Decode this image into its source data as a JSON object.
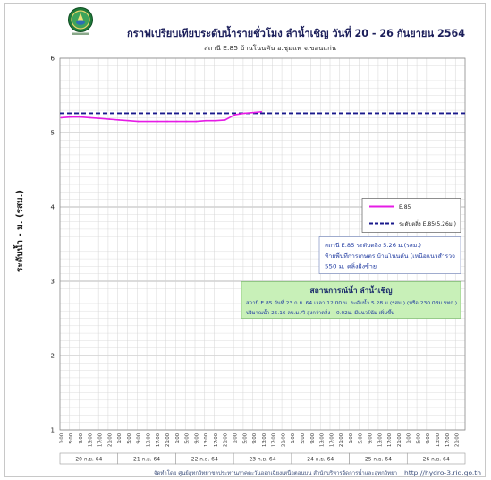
{
  "header": {
    "logo_icon": "rid-logo-icon"
  },
  "chart_data": {
    "type": "line",
    "title": "กราฟเปรียบเทียบระดับน้ำรายชั่วโมง  ลำน้ำเชิญ  วันที่ 20 - 26 กันยายน 2564",
    "subtitle": "สถานี E.85 บ้านโนนคัน อ.ชุมแพ จ.ขอนแก่น",
    "ylabel": "ระดับน้ำ  -  ม. (รสม.)",
    "ylim": [
      1,
      6
    ],
    "yticks": [
      1,
      2,
      3,
      4,
      5,
      6
    ],
    "days": [
      "20 ก.ย. 64",
      "21 ก.ย. 64",
      "22 ก.ย. 64",
      "23 ก.ย. 64",
      "24 ก.ย. 64",
      "25 ก.ย. 64",
      "26 ก.ย. 64"
    ],
    "hour_ticks": [
      "1:00",
      "5:00",
      "9:00",
      "13:00",
      "17:00",
      "21:00"
    ],
    "grid": true,
    "legend_position": "right-middle",
    "series": [
      {
        "name": "E.85",
        "color": "#e61ce6",
        "line_style": "solid",
        "points": [
          {
            "x": "20 ก.ย. 64 1:00",
            "y": 5.2
          },
          {
            "x": "20 ก.ย. 64 5:00",
            "y": 5.21
          },
          {
            "x": "20 ก.ย. 64 9:00",
            "y": 5.21
          },
          {
            "x": "20 ก.ย. 64 13:00",
            "y": 5.2
          },
          {
            "x": "20 ก.ย. 64 17:00",
            "y": 5.19
          },
          {
            "x": "20 ก.ย. 64 21:00",
            "y": 5.18
          },
          {
            "x": "21 ก.ย. 64 1:00",
            "y": 5.17
          },
          {
            "x": "21 ก.ย. 64 5:00",
            "y": 5.16
          },
          {
            "x": "21 ก.ย. 64 9:00",
            "y": 5.15
          },
          {
            "x": "21 ก.ย. 64 13:00",
            "y": 5.15
          },
          {
            "x": "21 ก.ย. 64 17:00",
            "y": 5.15
          },
          {
            "x": "21 ก.ย. 64 21:00",
            "y": 5.15
          },
          {
            "x": "22 ก.ย. 64 1:00",
            "y": 5.15
          },
          {
            "x": "22 ก.ย. 64 5:00",
            "y": 5.15
          },
          {
            "x": "22 ก.ย. 64 9:00",
            "y": 5.15
          },
          {
            "x": "22 ก.ย. 64 13:00",
            "y": 5.16
          },
          {
            "x": "22 ก.ย. 64 17:00",
            "y": 5.16
          },
          {
            "x": "22 ก.ย. 64 21:00",
            "y": 5.17
          },
          {
            "x": "23 ก.ย. 64 1:00",
            "y": 5.24
          },
          {
            "x": "23 ก.ย. 64 5:00",
            "y": 5.26
          },
          {
            "x": "23 ก.ย. 64 9:00",
            "y": 5.27
          },
          {
            "x": "23 ก.ย. 64 12:00",
            "y": 5.28
          }
        ]
      },
      {
        "name": "ระดับตลิ่ง E.85(5.26ม.)",
        "color": "#1a1a8c",
        "line_style": "dashed",
        "value": 5.26
      }
    ],
    "annotations": [
      {
        "lines": [
          "สถานี E.85 ระดับตลิ่ง  5.26 ม.(รสม.)",
          "ท้ายพื้นที่การเกษตร บ้านโนนคัน  (เหนือแนวสำรวจ",
          "550 ม. ตลิ่งฝั่งซ้าย"
        ]
      },
      {
        "title": "สถานการณ์น้ำ  ลำน้ำเชิญ",
        "lines": [
          "สถานี E.85 วันที่ 23 ก.ย. 64 เวลา 12.00 น. ระดับน้ำ 5.28 ม.(รสม.) (หรือ 230.08ม.รทก.)",
          "ปริมาณน้ำ  25.16  ลบ.ม./วิ สูงกว่าตลิ่ง +0.02ม. มีแนวโน้ม  เพิ่มขึ้น"
        ],
        "background": "#c8f0b8"
      }
    ]
  },
  "footer": {
    "credit": "จัดทำโดย ศูนย์อุทกวิทยาชลประทานภาคตะวันออกเฉียงเหนือตอนบน สำนักบริหารจัดการน้ำและอุทกวิทยา",
    "url": "http://hydro-3.rid.go.th"
  }
}
